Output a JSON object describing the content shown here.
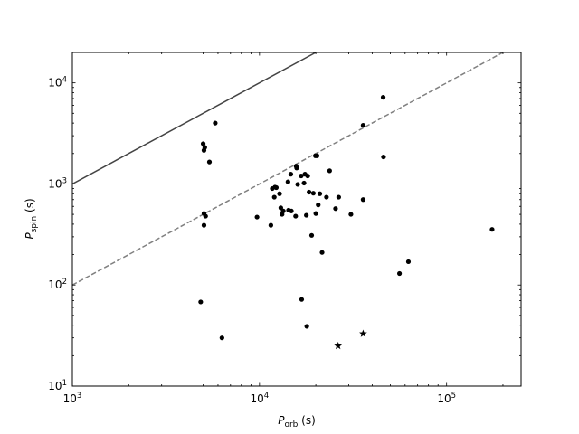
{
  "chart_data": {
    "type": "scatter",
    "xscale": "log",
    "yscale": "log",
    "xlim": [
      1000,
      250000
    ],
    "ylim": [
      10,
      20000
    ],
    "xlabel": {
      "main": "P",
      "sub": "orb",
      "unit": " (s)"
    },
    "ylabel": {
      "main": "P",
      "sub": "spin",
      "unit": " (s)"
    },
    "xticks": [
      {
        "value": 1000,
        "base": "10",
        "exp": "3"
      },
      {
        "value": 10000,
        "base": "10",
        "exp": "4"
      },
      {
        "value": 100000,
        "base": "10",
        "exp": "5"
      }
    ],
    "yticks": [
      {
        "value": 10,
        "base": "10",
        "exp": "1"
      },
      {
        "value": 100,
        "base": "10",
        "exp": "2"
      },
      {
        "value": 1000,
        "base": "10",
        "exp": "3"
      },
      {
        "value": 10000,
        "base": "10",
        "exp": "4"
      }
    ],
    "lines": [
      {
        "style": "solid",
        "color": "#444444",
        "x": [
          1000,
          20000
        ],
        "y": [
          1000,
          20000
        ]
      },
      {
        "style": "dashed",
        "color": "#808080",
        "x": [
          1000,
          250000
        ],
        "y": [
          100,
          25000
        ]
      }
    ],
    "dots": [
      {
        "x": 5000,
        "y": 2500
      },
      {
        "x": 5100,
        "y": 2300
      },
      {
        "x": 5050,
        "y": 2150
      },
      {
        "x": 5400,
        "y": 1650
      },
      {
        "x": 5800,
        "y": 4000
      },
      {
        "x": 5050,
        "y": 510
      },
      {
        "x": 5150,
        "y": 480
      },
      {
        "x": 5050,
        "y": 390
      },
      {
        "x": 4850,
        "y": 68
      },
      {
        "x": 6300,
        "y": 30
      },
      {
        "x": 9700,
        "y": 470
      },
      {
        "x": 11500,
        "y": 390
      },
      {
        "x": 11700,
        "y": 900
      },
      {
        "x": 12100,
        "y": 930
      },
      {
        "x": 12300,
        "y": 920
      },
      {
        "x": 12000,
        "y": 740
      },
      {
        "x": 12800,
        "y": 800
      },
      {
        "x": 13000,
        "y": 580
      },
      {
        "x": 13200,
        "y": 500
      },
      {
        "x": 13400,
        "y": 540
      },
      {
        "x": 14300,
        "y": 550
      },
      {
        "x": 14800,
        "y": 540
      },
      {
        "x": 14200,
        "y": 1050
      },
      {
        "x": 14700,
        "y": 1250
      },
      {
        "x": 15700,
        "y": 1500
      },
      {
        "x": 15800,
        "y": 1440
      },
      {
        "x": 16000,
        "y": 990
      },
      {
        "x": 15600,
        "y": 480
      },
      {
        "x": 16700,
        "y": 1200
      },
      {
        "x": 17300,
        "y": 1020
      },
      {
        "x": 17500,
        "y": 1250
      },
      {
        "x": 18100,
        "y": 1200
      },
      {
        "x": 18400,
        "y": 830
      },
      {
        "x": 17800,
        "y": 490
      },
      {
        "x": 19400,
        "y": 810
      },
      {
        "x": 19900,
        "y": 1900
      },
      {
        "x": 20300,
        "y": 1900
      },
      {
        "x": 20600,
        "y": 620
      },
      {
        "x": 21000,
        "y": 800
      },
      {
        "x": 20000,
        "y": 510
      },
      {
        "x": 19000,
        "y": 310
      },
      {
        "x": 21600,
        "y": 210
      },
      {
        "x": 22800,
        "y": 740
      },
      {
        "x": 23700,
        "y": 1350
      },
      {
        "x": 25500,
        "y": 570
      },
      {
        "x": 26500,
        "y": 740
      },
      {
        "x": 30800,
        "y": 500
      },
      {
        "x": 35800,
        "y": 3800
      },
      {
        "x": 35800,
        "y": 700
      },
      {
        "x": 45800,
        "y": 7200
      },
      {
        "x": 46000,
        "y": 1850
      },
      {
        "x": 56000,
        "y": 130
      },
      {
        "x": 62500,
        "y": 170
      },
      {
        "x": 175000,
        "y": 355
      },
      {
        "x": 16800,
        "y": 72
      },
      {
        "x": 17900,
        "y": 39
      }
    ],
    "stars": [
      {
        "x": 26300,
        "y": 25
      },
      {
        "x": 35800,
        "y": 33
      }
    ]
  }
}
